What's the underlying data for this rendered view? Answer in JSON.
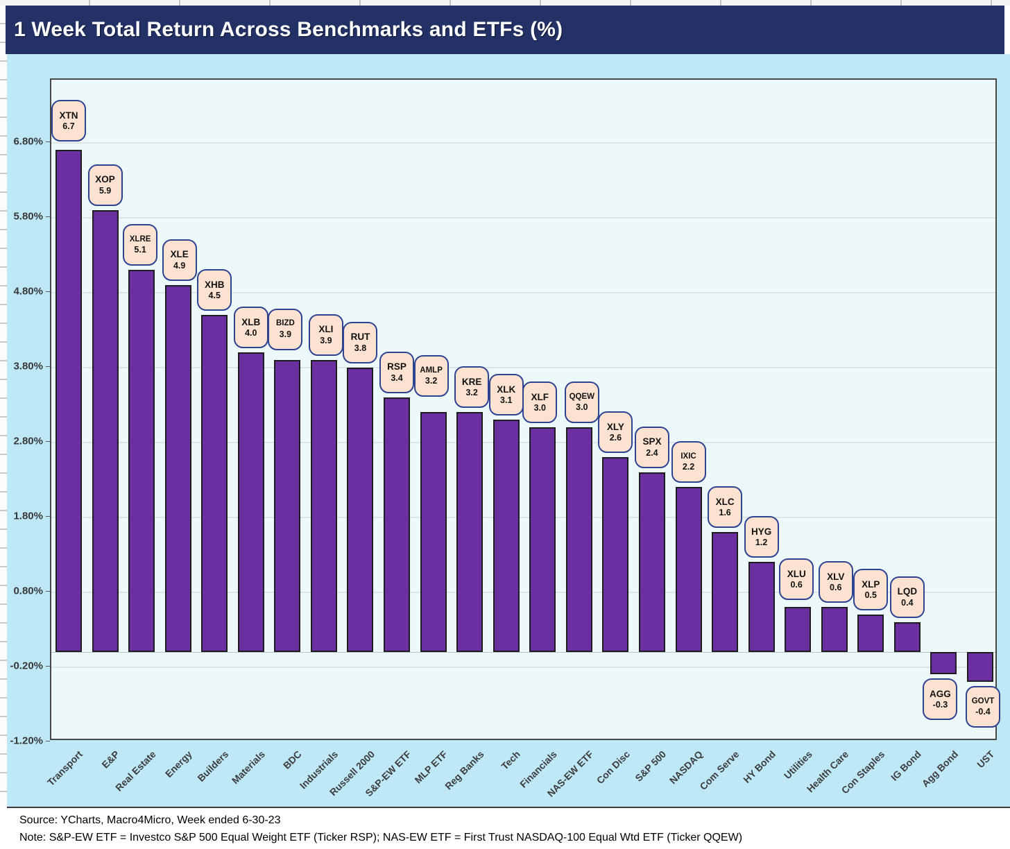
{
  "title": "1 Week Total Return Across Benchmarks and ETFs (%)",
  "footer": {
    "source_line": "Source: YCharts, Macro4Micro, Week ended 6-30-23",
    "note_line": "Note: S&P-EW ETF = Investco S&P 500 Equal Weight ETF (Ticker RSP); NAS-EW ETF = First Trust NASDAQ-100 Equal Wtd ETF (Ticker QQEW)"
  },
  "colors": {
    "title_bg": "#233166",
    "chart_bg": "#bfe8f7",
    "plot_bg": "#edf8fb",
    "bar_fill": "#6c2fa2",
    "bar_border": "#1d1d1d",
    "label_box_fill": "#fce3d1",
    "label_box_border": "#2d4391"
  },
  "chart_data": {
    "type": "bar",
    "title": "1 Week Total Return Across Benchmarks and ETFs (%)",
    "xlabel": "",
    "ylabel": "",
    "ylim": [
      -1.2,
      7.64
    ],
    "grid": "horizontal",
    "legend": "none",
    "ytick_labels": [
      "6.80%",
      "5.80%",
      "4.80%",
      "3.80%",
      "2.80%",
      "1.80%",
      "0.80%",
      "-0.20%",
      "-1.20%"
    ],
    "categories": [
      "Transport",
      "E&P",
      "Real Estate",
      "Energy",
      "Builders",
      "Materials",
      "BDC",
      "Industrials",
      "Russell 2000",
      "S&P-EW ETF",
      "MLP ETF",
      "Reg Banks",
      "Tech",
      "Financials",
      "NAS-EW ETF",
      "Con Disc",
      "S&P 500",
      "NASDAQ",
      "Com Serve",
      "HY Bond",
      "Utilities",
      "Health Care",
      "Con Staples",
      "IG Bond",
      "Agg Bond",
      "UST"
    ],
    "tickers": [
      "XTN",
      "XOP",
      "XLRE",
      "XLE",
      "XHB",
      "XLB",
      "BIZD",
      "XLI",
      "RUT",
      "RSP",
      "AMLP",
      "KRE",
      "XLK",
      "XLF",
      "QQEW",
      "XLY",
      "SPX",
      "IXIC",
      "XLC",
      "HYG",
      "XLU",
      "XLV",
      "XLP",
      "LQD",
      "AGG",
      "GOVT"
    ],
    "values": [
      6.7,
      5.9,
      5.1,
      4.9,
      4.5,
      4.0,
      3.9,
      3.9,
      3.8,
      3.4,
      3.2,
      3.2,
      3.1,
      3.0,
      3.0,
      2.6,
      2.4,
      2.2,
      1.6,
      1.2,
      0.6,
      0.6,
      0.5,
      0.4,
      -0.3,
      -0.4
    ],
    "value_labels": [
      "6.7",
      "5.9",
      "5.1",
      "4.9",
      "4.5",
      "4.0",
      "3.9",
      "3.9",
      "3.8",
      "3.4",
      "3.2",
      "3.2",
      "3.1",
      "3.0",
      "3.0",
      "2.6",
      "2.4",
      "2.2",
      "1.6",
      "1.2",
      "0.6",
      "0.6",
      "0.5",
      "0.4",
      "-0.3",
      "-0.4"
    ]
  }
}
